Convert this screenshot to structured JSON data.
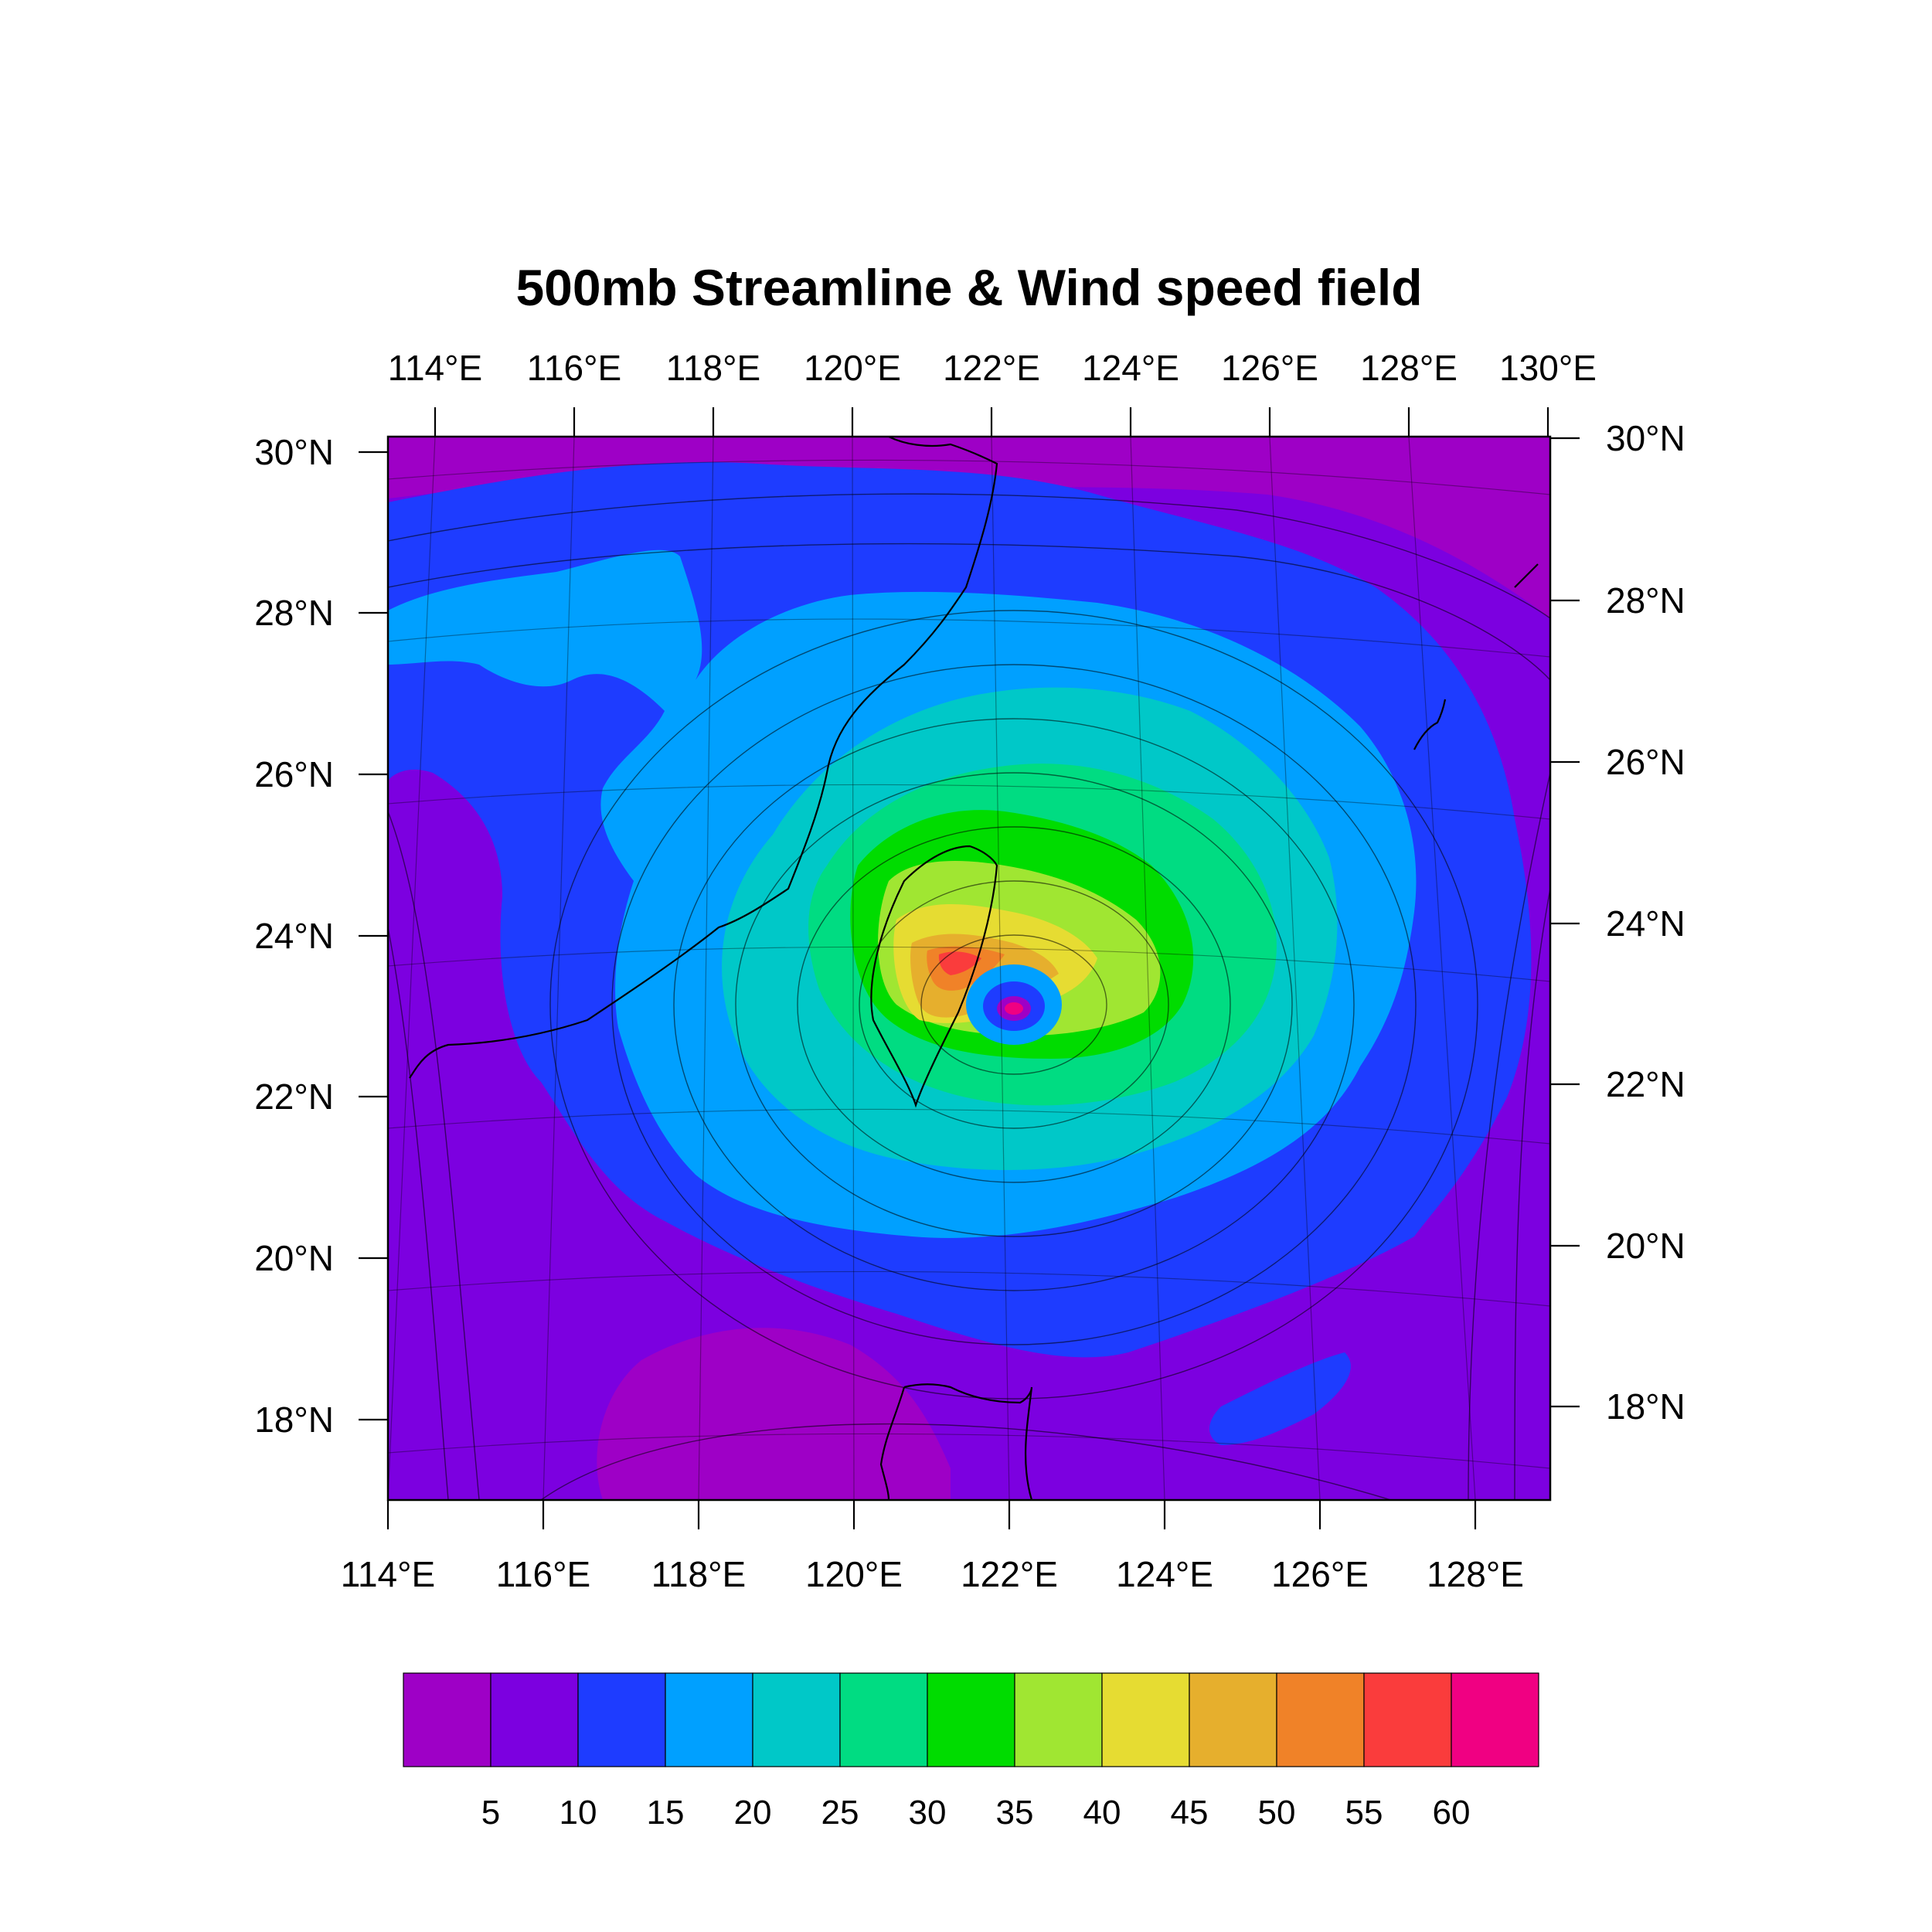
{
  "title": "500mb Streamline & Wind speed field",
  "colors": {
    "bins": [
      "#9e00c6",
      "#7c00e0",
      "#1e3cff",
      "#00a0ff",
      "#00c8c8",
      "#00dc82",
      "#00dc00",
      "#a0e632",
      "#e6dc32",
      "#e6af2d",
      "#f08228",
      "#fa3c3c",
      "#f00082"
    ]
  },
  "map": {
    "top_lon_labels": [
      "114°E",
      "116°E",
      "118°E",
      "120°E",
      "122°E",
      "124°E",
      "126°E",
      "128°E",
      "130°E"
    ],
    "bottom_lon_labels": [
      "114°E",
      "116°E",
      "118°E",
      "120°E",
      "122°E",
      "124°E",
      "126°E",
      "128°E"
    ],
    "left_lat_labels": [
      "30°N",
      "28°N",
      "26°N",
      "24°N",
      "22°N",
      "20°N",
      "18°N"
    ],
    "right_lat_labels": [
      "30°N",
      "28°N",
      "26°N",
      "24°N",
      "22°N",
      "20°N",
      "18°N"
    ]
  },
  "colorbar": {
    "labels": [
      "5",
      "10",
      "15",
      "20",
      "25",
      "30",
      "35",
      "40",
      "45",
      "50",
      "55",
      "60"
    ]
  },
  "chart_data": {
    "type": "heatmap",
    "variable": "wind speed",
    "level": "500mb",
    "lon_range": [
      114,
      129
    ],
    "lat_range": [
      17,
      30.2
    ],
    "cyclone_center": {
      "lon": 122.1,
      "lat": 23.1
    },
    "contour_levels": [
      5,
      10,
      15,
      20,
      25,
      30,
      35,
      40,
      45,
      50,
      55,
      60
    ]
  }
}
